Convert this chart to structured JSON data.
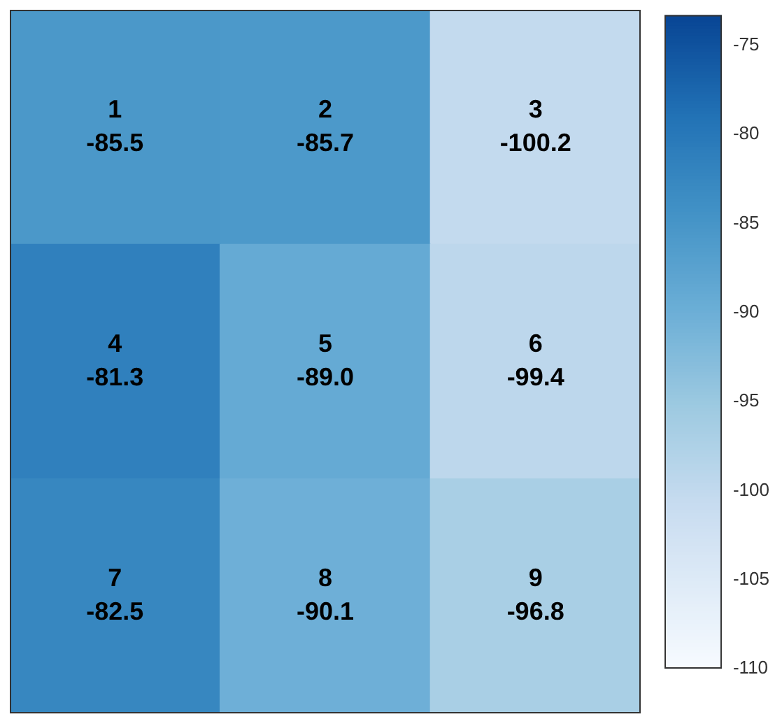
{
  "chart_data": {
    "type": "heatmap",
    "categories": [
      null,
      null,
      null
    ],
    "y_categories": [
      null,
      null,
      null
    ],
    "cells": [
      [
        -85.5,
        -85.7,
        -100.2
      ],
      [
        -81.3,
        -89.0,
        -99.4
      ],
      [
        -82.5,
        -90.1,
        -96.8
      ]
    ],
    "cell_labels": [
      [
        "1\n-85.5",
        "2\n-85.7",
        "3\n-100.2"
      ],
      [
        "4\n-81.3",
        "5\n-89.0",
        "6\n-99.4"
      ],
      [
        "7\n-82.5",
        "8\n-90.1",
        "9\n-96.8"
      ]
    ],
    "clim": [
      -110,
      -73.3
    ],
    "cticks": [
      -110,
      -105,
      -100,
      -95,
      -90,
      -85,
      -80,
      -75
    ],
    "tick_labels": false
  }
}
